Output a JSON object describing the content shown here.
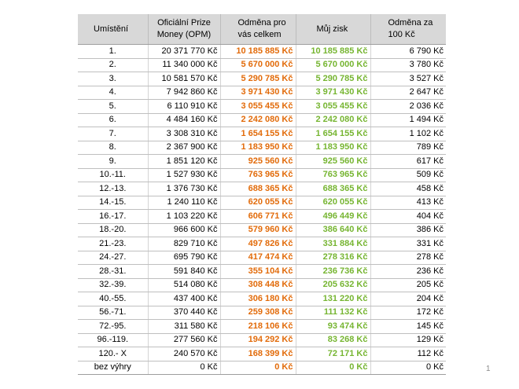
{
  "table": {
    "headers": {
      "place": "Umístění",
      "opm": [
        "Oficiální Prize",
        "Money (OPM)"
      ],
      "reward": [
        "Odměna pro",
        "vás celkem"
      ],
      "profit": "Můj zisk",
      "per100": [
        "Odměna za",
        "100 Kč"
      ]
    },
    "colors": {
      "header_bg": "#d8d8d8",
      "reward_text": "#e26b0a",
      "profit_text": "#76b531"
    },
    "rows": [
      {
        "place": "1.",
        "opm": "20 371 770 Kč",
        "reward": "10 185 885 Kč",
        "profit": "10 185 885 Kč",
        "per100": "6 790 Kč"
      },
      {
        "place": "2.",
        "opm": "11 340 000 Kč",
        "reward": "5 670 000 Kč",
        "profit": "5 670 000 Kč",
        "per100": "3 780 Kč"
      },
      {
        "place": "3.",
        "opm": "10 581 570 Kč",
        "reward": "5 290 785 Kč",
        "profit": "5 290 785 Kč",
        "per100": "3 527 Kč"
      },
      {
        "place": "4.",
        "opm": "7 942 860 Kč",
        "reward": "3 971 430 Kč",
        "profit": "3 971 430 Kč",
        "per100": "2 647 Kč"
      },
      {
        "place": "5.",
        "opm": "6 110 910 Kč",
        "reward": "3 055 455 Kč",
        "profit": "3 055 455 Kč",
        "per100": "2 036 Kč"
      },
      {
        "place": "6.",
        "opm": "4 484 160 Kč",
        "reward": "2 242 080 Kč",
        "profit": "2 242 080 Kč",
        "per100": "1 494 Kč"
      },
      {
        "place": "7.",
        "opm": "3 308 310 Kč",
        "reward": "1 654 155 Kč",
        "profit": "1 654 155 Kč",
        "per100": "1 102 Kč"
      },
      {
        "place": "8.",
        "opm": "2 367 900 Kč",
        "reward": "1 183 950 Kč",
        "profit": "1 183 950 Kč",
        "per100": "789 Kč"
      },
      {
        "place": "9.",
        "opm": "1 851 120 Kč",
        "reward": "925 560 Kč",
        "profit": "925 560 Kč",
        "per100": "617 Kč"
      },
      {
        "place": "10.-11.",
        "opm": "1 527 930 Kč",
        "reward": "763 965 Kč",
        "profit": "763 965 Kč",
        "per100": "509 Kč"
      },
      {
        "place": "12.-13.",
        "opm": "1 376 730 Kč",
        "reward": "688 365 Kč",
        "profit": "688 365 Kč",
        "per100": "458 Kč"
      },
      {
        "place": "14.-15.",
        "opm": "1 240 110 Kč",
        "reward": "620 055 Kč",
        "profit": "620 055 Kč",
        "per100": "413 Kč"
      },
      {
        "place": "16.-17.",
        "opm": "1 103 220 Kč",
        "reward": "606 771 Kč",
        "profit": "496 449 Kč",
        "per100": "404 Kč"
      },
      {
        "place": "18.-20.",
        "opm": "966 600 Kč",
        "reward": "579 960 Kč",
        "profit": "386 640 Kč",
        "per100": "386 Kč"
      },
      {
        "place": "21.-23.",
        "opm": "829 710 Kč",
        "reward": "497 826 Kč",
        "profit": "331 884 Kč",
        "per100": "331 Kč"
      },
      {
        "place": "24.-27.",
        "opm": "695 790 Kč",
        "reward": "417 474 Kč",
        "profit": "278 316 Kč",
        "per100": "278 Kč"
      },
      {
        "place": "28.-31.",
        "opm": "591 840 Kč",
        "reward": "355 104 Kč",
        "profit": "236 736 Kč",
        "per100": "236 Kč"
      },
      {
        "place": "32.-39.",
        "opm": "514 080 Kč",
        "reward": "308 448 Kč",
        "profit": "205 632 Kč",
        "per100": "205 Kč"
      },
      {
        "place": "40.-55.",
        "opm": "437 400 Kč",
        "reward": "306 180 Kč",
        "profit": "131 220 Kč",
        "per100": "204 Kč"
      },
      {
        "place": "56.-71.",
        "opm": "370 440 Kč",
        "reward": "259 308 Kč",
        "profit": "111 132 Kč",
        "per100": "172 Kč"
      },
      {
        "place": "72.-95.",
        "opm": "311 580 Kč",
        "reward": "218 106 Kč",
        "profit": "93 474 Kč",
        "per100": "145 Kč"
      },
      {
        "place": "96.-119.",
        "opm": "277 560 Kč",
        "reward": "194 292 Kč",
        "profit": "83 268 Kč",
        "per100": "129 Kč"
      },
      {
        "place": "120.- X",
        "opm": "240 570 Kč",
        "reward": "168 399 Kč",
        "profit": "72 171 Kč",
        "per100": "112 Kč"
      },
      {
        "place": "bez výhry",
        "opm": "0 Kč",
        "reward": "0 Kč",
        "profit": "0 Kč",
        "per100": "0 Kč"
      }
    ]
  },
  "page_number": "1"
}
